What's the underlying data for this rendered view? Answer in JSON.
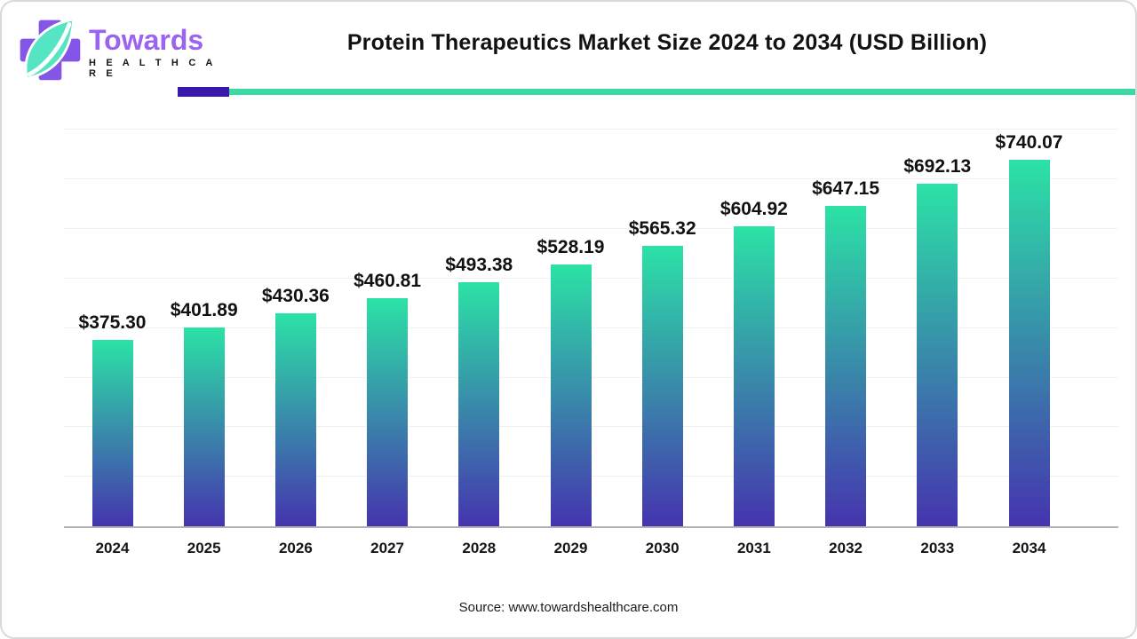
{
  "brand": {
    "name": "Towards",
    "subname": "H E A L T H C A R E",
    "logo_icon": "cross-and-leaf-icon"
  },
  "header": {
    "title": "Protein Therapeutics Market Size 2024 to 2034 (USD Billion)"
  },
  "accent": {
    "purple_segment": "#3a18ac",
    "teal_segment": "#3cd9a3"
  },
  "chart_data": {
    "type": "bar",
    "title": "Protein Therapeutics Market Size 2024 to 2034 (USD Billion)",
    "categories": [
      "2024",
      "2025",
      "2026",
      "2027",
      "2028",
      "2029",
      "2030",
      "2031",
      "2032",
      "2033",
      "2034"
    ],
    "values": [
      375.3,
      401.89,
      430.36,
      460.81,
      493.38,
      528.19,
      565.32,
      604.92,
      647.15,
      692.13,
      740.07
    ],
    "data_labels": [
      "$375.30",
      "$401.89",
      "$430.36",
      "$460.81",
      "$493.38",
      "$528.19",
      "$565.32",
      "$604.92",
      "$647.15",
      "$692.13",
      "$740.07"
    ],
    "xlabel": "",
    "ylabel": "",
    "unit": "USD Billion",
    "ylim": [
      0,
      800
    ],
    "gridline_step": 100,
    "grid": "horizontal-faint",
    "legend": "none",
    "y_axis_labels_visible": false,
    "bar_color_top": "#2ce2a6",
    "bar_color_bottom": "#4534ae",
    "axis_line_color": "#b3b3b3"
  },
  "footer": {
    "source": "Source: www.towardshealthcare.com"
  }
}
